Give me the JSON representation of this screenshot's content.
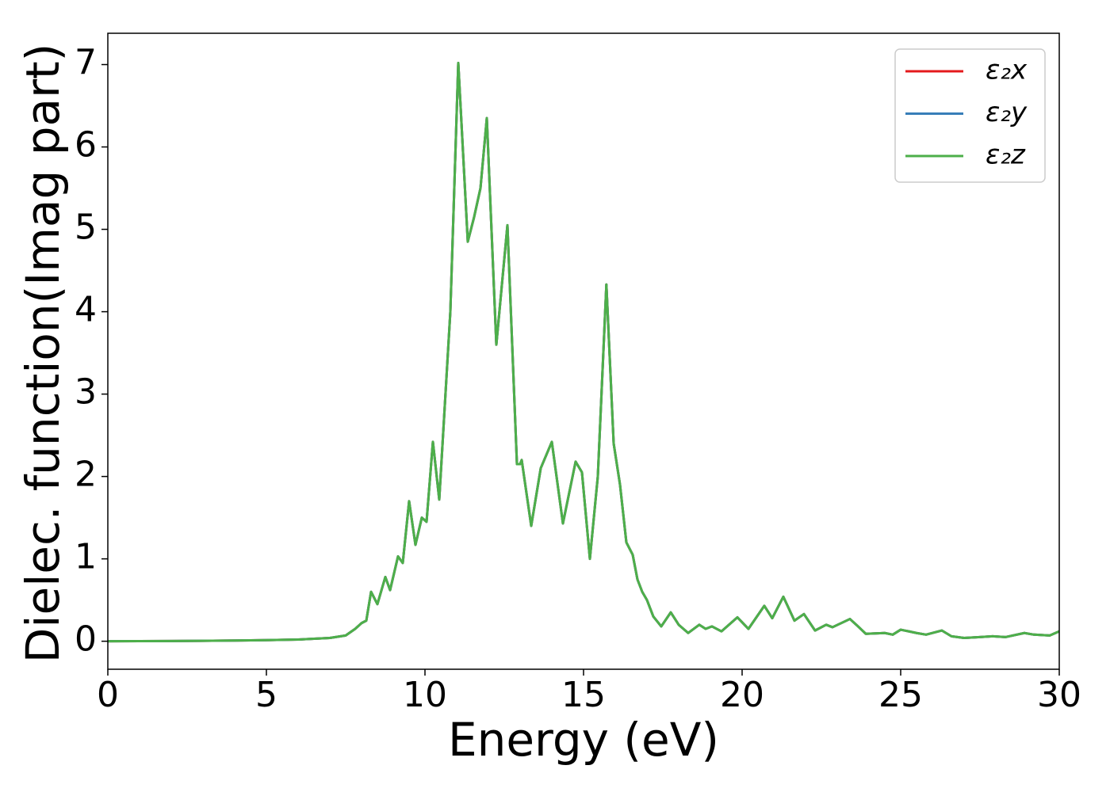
{
  "chart_data": {
    "type": "line",
    "xlabel": "Energy (eV)",
    "ylabel": "Dielec. function(Imag part)",
    "x": [
      0,
      2,
      4,
      5,
      6,
      7,
      7.5,
      7.8,
      8.0,
      8.15,
      8.3,
      8.5,
      8.75,
      8.9,
      9.15,
      9.3,
      9.5,
      9.7,
      9.9,
      10.05,
      10.25,
      10.45,
      10.8,
      11.05,
      11.35,
      11.55,
      11.75,
      11.95,
      12.25,
      12.6,
      12.9,
      13.0,
      13.05,
      13.35,
      13.65,
      14.0,
      14.35,
      14.75,
      14.95,
      15.2,
      15.45,
      15.72,
      15.95,
      16.15,
      16.35,
      16.55,
      16.7,
      16.85,
      17.0,
      17.2,
      17.45,
      17.75,
      18.0,
      18.3,
      18.65,
      18.85,
      19.05,
      19.35,
      19.85,
      20.2,
      20.7,
      20.95,
      21.3,
      21.65,
      21.95,
      22.3,
      22.65,
      22.85,
      23.4,
      23.6,
      23.9,
      24.5,
      24.75,
      25.0,
      25.25,
      25.5,
      25.8,
      26.3,
      26.6,
      27.0,
      27.5,
      27.9,
      28.3,
      28.9,
      29.2,
      29.7,
      30
    ],
    "series": [
      {
        "name": "ε₂x",
        "color": "#e41a1c",
        "values": [
          0,
          0.003,
          0.008,
          0.013,
          0.02,
          0.04,
          0.07,
          0.15,
          0.22,
          0.25,
          0.6,
          0.45,
          0.78,
          0.62,
          1.03,
          0.95,
          1.7,
          1.17,
          1.5,
          1.45,
          2.42,
          1.72,
          4.0,
          7.02,
          4.85,
          5.15,
          5.5,
          6.35,
          3.6,
          5.05,
          2.15,
          2.15,
          2.2,
          1.4,
          2.1,
          2.42,
          1.43,
          2.18,
          2.05,
          1.0,
          2.0,
          4.33,
          2.4,
          1.9,
          1.2,
          1.05,
          0.75,
          0.6,
          0.5,
          0.3,
          0.18,
          0.35,
          0.2,
          0.1,
          0.2,
          0.15,
          0.18,
          0.12,
          0.29,
          0.15,
          0.43,
          0.28,
          0.54,
          0.25,
          0.33,
          0.13,
          0.2,
          0.17,
          0.27,
          0.2,
          0.09,
          0.1,
          0.08,
          0.14,
          0.12,
          0.1,
          0.08,
          0.13,
          0.06,
          0.04,
          0.05,
          0.06,
          0.05,
          0.1,
          0.08,
          0.07,
          0.12
        ]
      },
      {
        "name": "ε₂y",
        "color": "#377eb8",
        "values": [
          0,
          0.003,
          0.008,
          0.013,
          0.02,
          0.04,
          0.07,
          0.15,
          0.22,
          0.25,
          0.6,
          0.45,
          0.78,
          0.62,
          1.03,
          0.95,
          1.7,
          1.17,
          1.5,
          1.45,
          2.42,
          1.72,
          4.0,
          7.02,
          4.85,
          5.15,
          5.5,
          6.35,
          3.6,
          5.05,
          2.15,
          2.15,
          2.2,
          1.4,
          2.1,
          2.42,
          1.43,
          2.18,
          2.05,
          1.0,
          2.0,
          4.33,
          2.4,
          1.9,
          1.2,
          1.05,
          0.75,
          0.6,
          0.5,
          0.3,
          0.18,
          0.35,
          0.2,
          0.1,
          0.2,
          0.15,
          0.18,
          0.12,
          0.29,
          0.15,
          0.43,
          0.28,
          0.54,
          0.25,
          0.33,
          0.13,
          0.2,
          0.17,
          0.27,
          0.2,
          0.09,
          0.1,
          0.08,
          0.14,
          0.12,
          0.1,
          0.08,
          0.13,
          0.06,
          0.04,
          0.05,
          0.06,
          0.05,
          0.1,
          0.08,
          0.07,
          0.12
        ]
      },
      {
        "name": "ε₂z",
        "color": "#4daf4a",
        "values": [
          0,
          0.003,
          0.008,
          0.013,
          0.02,
          0.04,
          0.07,
          0.15,
          0.22,
          0.25,
          0.6,
          0.45,
          0.78,
          0.62,
          1.03,
          0.95,
          1.7,
          1.17,
          1.5,
          1.45,
          2.42,
          1.72,
          4.0,
          7.02,
          4.85,
          5.15,
          5.5,
          6.35,
          3.6,
          5.05,
          2.15,
          2.15,
          2.2,
          1.4,
          2.1,
          2.42,
          1.43,
          2.18,
          2.05,
          1.0,
          2.0,
          4.33,
          2.4,
          1.9,
          1.2,
          1.05,
          0.75,
          0.6,
          0.5,
          0.3,
          0.18,
          0.35,
          0.2,
          0.1,
          0.2,
          0.15,
          0.18,
          0.12,
          0.29,
          0.15,
          0.43,
          0.28,
          0.54,
          0.25,
          0.33,
          0.13,
          0.2,
          0.17,
          0.27,
          0.2,
          0.09,
          0.1,
          0.08,
          0.14,
          0.12,
          0.1,
          0.08,
          0.13,
          0.06,
          0.04,
          0.05,
          0.06,
          0.05,
          0.1,
          0.08,
          0.07,
          0.12
        ]
      }
    ],
    "xlim": [
      0,
      30
    ],
    "xticks": [
      0,
      5,
      10,
      15,
      20,
      25,
      30
    ],
    "ylim": [
      -0.34,
      7.38
    ],
    "yticks": [
      0,
      1,
      2,
      3,
      4,
      5,
      6,
      7
    ],
    "grid": false,
    "legend": "upper right"
  }
}
